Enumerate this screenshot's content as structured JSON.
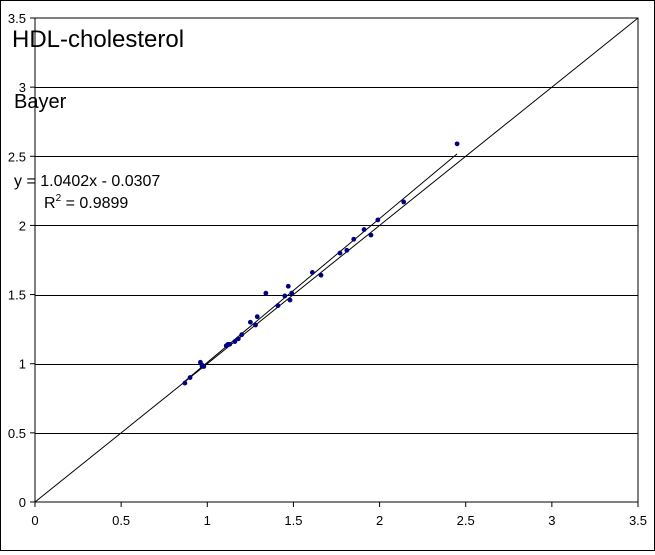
{
  "chart_data": {
    "type": "scatter",
    "title": "HDL-cholesterol",
    "subtitle": "Bayer",
    "xlabel": "",
    "ylabel": "",
    "xlim": [
      0,
      3.5
    ],
    "ylim": [
      0,
      3.5
    ],
    "x_ticks": [
      "0",
      "0.5",
      "1",
      "1.5",
      "2",
      "2.5",
      "3",
      "3.5"
    ],
    "y_ticks": [
      "0",
      "0.5",
      "1",
      "1.5",
      "2",
      "2.5",
      "3",
      "3.5"
    ],
    "grid": "horizontal",
    "legend": "none",
    "marker_color": "#000080",
    "series": [
      {
        "points": [
          [
            0.87,
            0.86
          ],
          [
            0.9,
            0.9
          ],
          [
            0.96,
            1.01
          ],
          [
            0.97,
            0.99
          ],
          [
            0.97,
            0.98
          ],
          [
            0.98,
            0.98
          ],
          [
            1.11,
            1.13
          ],
          [
            1.12,
            1.14
          ],
          [
            1.13,
            1.14
          ],
          [
            1.16,
            1.16
          ],
          [
            1.18,
            1.18
          ],
          [
            1.2,
            1.21
          ],
          [
            1.25,
            1.3
          ],
          [
            1.28,
            1.28
          ],
          [
            1.29,
            1.34
          ],
          [
            1.34,
            1.51
          ],
          [
            1.41,
            1.42
          ],
          [
            1.45,
            1.49
          ],
          [
            1.47,
            1.56
          ],
          [
            1.48,
            1.46
          ],
          [
            1.49,
            1.51
          ],
          [
            1.61,
            1.66
          ],
          [
            1.66,
            1.64
          ],
          [
            1.77,
            1.8
          ],
          [
            1.81,
            1.82
          ],
          [
            1.85,
            1.9
          ],
          [
            1.91,
            1.97
          ],
          [
            1.95,
            1.93
          ],
          [
            1.99,
            2.04
          ],
          [
            2.14,
            2.17
          ],
          [
            2.45,
            2.59
          ]
        ]
      }
    ],
    "trendline": {
      "slope": 1.0402,
      "intercept": -0.0307,
      "x_range": [
        0.87,
        2.45
      ],
      "equation": "y = 1.0402x - 0.0307",
      "r2_label": "R",
      "r2_exponent": "2",
      "r2_value": " = 0.9899"
    },
    "identity_line": {
      "from": [
        0,
        0
      ],
      "to": [
        3.5,
        3.5
      ]
    }
  }
}
